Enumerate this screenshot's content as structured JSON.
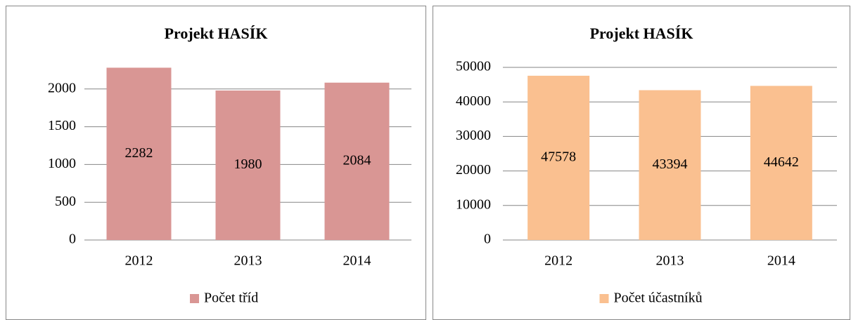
{
  "chart_data": [
    {
      "type": "bar",
      "title": "Projekt HASÍK",
      "categories": [
        "2012",
        "2013",
        "2014"
      ],
      "series": [
        {
          "name": "Počet tříd",
          "color": "#d99694",
          "values": [
            2282,
            1980,
            2084
          ]
        }
      ],
      "ylim": [
        0,
        2500
      ],
      "yticks": [
        0,
        500,
        1000,
        1500,
        2000
      ],
      "grid": true,
      "legend": "bottom"
    },
    {
      "type": "bar",
      "title": "Projekt HASÍK",
      "categories": [
        "2012",
        "2013",
        "2014"
      ],
      "series": [
        {
          "name": "Počet účastníků",
          "color": "#fac090",
          "values": [
            47578,
            43394,
            44642
          ]
        }
      ],
      "ylim": [
        0,
        50000
      ],
      "yticks": [
        0,
        10000,
        20000,
        30000,
        40000,
        50000
      ],
      "grid": true,
      "legend": "bottom"
    }
  ]
}
